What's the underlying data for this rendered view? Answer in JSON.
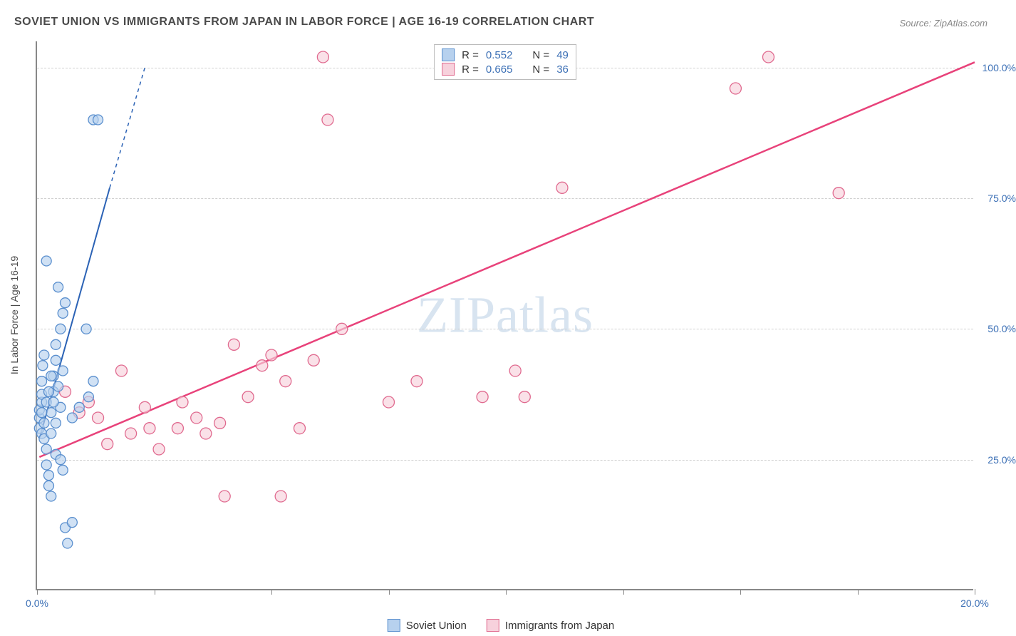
{
  "title": "SOVIET UNION VS IMMIGRANTS FROM JAPAN IN LABOR FORCE | AGE 16-19 CORRELATION CHART",
  "source": "Source: ZipAtlas.com",
  "watermark": "ZIPatlas",
  "y_axis_title": "In Labor Force | Age 16-19",
  "axis_color": "#888888",
  "grid_color": "#d0d0d0",
  "tick_label_color": "#3b6fb5",
  "x": {
    "min": 0,
    "max": 20,
    "ticks": [
      0,
      2.5,
      5,
      7.5,
      10,
      12.5,
      15,
      17.5,
      20
    ],
    "labels": {
      "0": "0.0%",
      "20": "20.0%"
    }
  },
  "y": {
    "min": 0,
    "max": 105,
    "gridlines": [
      25,
      50,
      75,
      100
    ],
    "labels": {
      "25": "25.0%",
      "50": "50.0%",
      "75": "75.0%",
      "100": "100.0%"
    }
  },
  "series": {
    "soviet": {
      "label": "Soviet Union",
      "fill": "#b7d1ee",
      "stroke": "#5a8fce",
      "line_stroke": "#2b62b5",
      "line_width": 2,
      "marker_r": 7,
      "R": "0.552",
      "N": "49",
      "trend": {
        "x1": 0.05,
        "y1": 29,
        "x2": 1.55,
        "y2": 77,
        "extend_to_x": 2.3,
        "extend_to_y": 100
      },
      "points": [
        [
          0.05,
          31
        ],
        [
          0.05,
          33
        ],
        [
          0.05,
          34.5
        ],
        [
          0.1,
          36
        ],
        [
          0.1,
          37.5
        ],
        [
          0.1,
          40
        ],
        [
          0.12,
          43
        ],
        [
          0.15,
          45
        ],
        [
          0.1,
          30
        ],
        [
          0.15,
          29
        ],
        [
          0.2,
          27
        ],
        [
          0.2,
          24
        ],
        [
          0.25,
          20
        ],
        [
          0.25,
          22
        ],
        [
          0.3,
          18
        ],
        [
          0.4,
          26
        ],
        [
          0.5,
          25
        ],
        [
          0.55,
          23
        ],
        [
          0.6,
          12
        ],
        [
          0.65,
          9
        ],
        [
          0.75,
          13
        ],
        [
          0.3,
          34
        ],
        [
          0.35,
          38
        ],
        [
          0.35,
          41
        ],
        [
          0.4,
          44
        ],
        [
          0.4,
          47
        ],
        [
          0.5,
          50
        ],
        [
          0.55,
          53
        ],
        [
          0.6,
          55
        ],
        [
          0.45,
          58
        ],
        [
          0.2,
          63
        ],
        [
          0.3,
          30
        ],
        [
          0.4,
          32
        ],
        [
          0.5,
          35
        ],
        [
          0.15,
          32
        ],
        [
          0.1,
          34
        ],
        [
          0.2,
          36
        ],
        [
          0.75,
          33
        ],
        [
          0.9,
          35
        ],
        [
          1.1,
          37
        ],
        [
          1.2,
          40
        ],
        [
          1.05,
          50
        ],
        [
          1.2,
          90
        ],
        [
          1.3,
          90
        ],
        [
          0.35,
          36
        ],
        [
          0.45,
          39
        ],
        [
          0.55,
          42
        ],
        [
          0.25,
          38
        ],
        [
          0.3,
          41
        ]
      ]
    },
    "japan": {
      "label": "Immigrants from Japan",
      "fill": "#f7d1dc",
      "stroke": "#e06a8f",
      "line_stroke": "#e8427a",
      "line_width": 2.5,
      "marker_r": 8,
      "R": "0.665",
      "N": "36",
      "trend": {
        "x1": 0.05,
        "y1": 25.5,
        "x2": 20,
        "y2": 101
      },
      "points": [
        [
          0.9,
          34
        ],
        [
          1.1,
          36
        ],
        [
          1.3,
          33
        ],
        [
          1.5,
          28
        ],
        [
          1.8,
          42
        ],
        [
          2.0,
          30
        ],
        [
          2.3,
          35
        ],
        [
          2.4,
          31
        ],
        [
          2.6,
          27
        ],
        [
          3.0,
          31
        ],
        [
          3.1,
          36
        ],
        [
          3.4,
          33
        ],
        [
          3.6,
          30
        ],
        [
          3.9,
          32
        ],
        [
          4.0,
          18
        ],
        [
          4.2,
          47
        ],
        [
          4.5,
          37
        ],
        [
          4.8,
          43
        ],
        [
          5.0,
          45
        ],
        [
          5.2,
          18
        ],
        [
          5.3,
          40
        ],
        [
          5.6,
          31
        ],
        [
          5.9,
          44
        ],
        [
          6.1,
          102
        ],
        [
          6.2,
          90
        ],
        [
          6.5,
          50
        ],
        [
          7.5,
          36
        ],
        [
          8.1,
          40
        ],
        [
          9.5,
          37
        ],
        [
          10.2,
          42
        ],
        [
          10.4,
          37
        ],
        [
          11.2,
          77
        ],
        [
          14.9,
          96
        ],
        [
          15.6,
          102
        ],
        [
          17.1,
          76
        ],
        [
          0.6,
          38
        ]
      ]
    }
  },
  "legend_stats_label_R": "R =",
  "legend_stats_label_N": "N ="
}
